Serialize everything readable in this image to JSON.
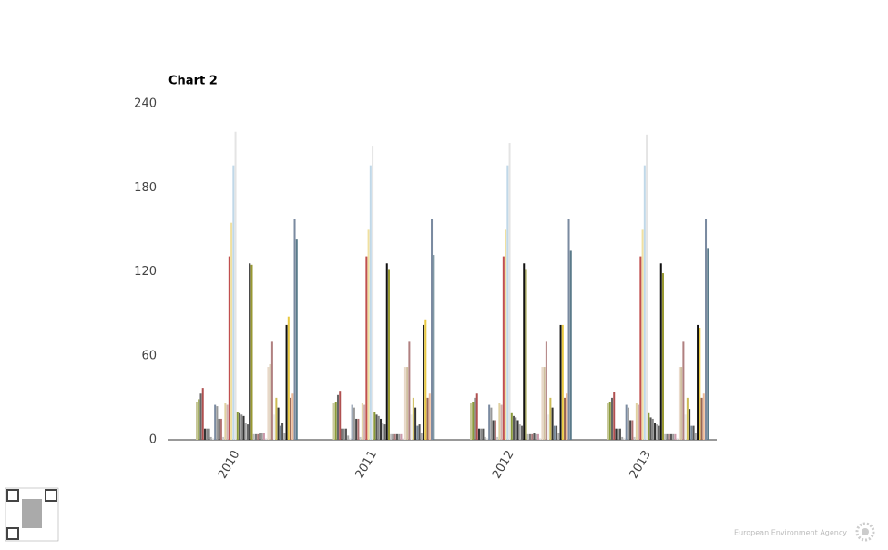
{
  "chart_data": {
    "type": "bar",
    "title": "Chart 2",
    "categories": [
      "2010",
      "2011",
      "2012",
      "2013"
    ],
    "ylim": [
      0,
      240
    ],
    "yticks": [
      0,
      60,
      120,
      180,
      240
    ],
    "grid": false,
    "series": [
      {
        "color": "#c8c89a",
        "values": [
          27,
          26,
          26,
          26
        ]
      },
      {
        "color": "#8a9a3a",
        "values": [
          29,
          27,
          27,
          27
        ]
      },
      {
        "color": "#666666",
        "values": [
          33,
          32,
          30,
          30
        ]
      },
      {
        "color": "#b05050",
        "values": [
          37,
          35,
          33,
          34
        ]
      },
      {
        "color": "#333333",
        "values": [
          8,
          8,
          8,
          8
        ]
      },
      {
        "color": "#888888",
        "values": [
          8,
          8,
          8,
          8
        ]
      },
      {
        "color": "#555555",
        "values": [
          8,
          8,
          8,
          8
        ]
      },
      {
        "color": "#aaaaaa",
        "values": [
          2,
          3,
          2,
          2
        ]
      },
      {
        "color": "#dddddd",
        "values": [
          1,
          1,
          1,
          1
        ]
      },
      {
        "color": "#7a8aa0",
        "values": [
          25,
          25,
          25,
          25
        ]
      },
      {
        "color": "#999999",
        "values": [
          24,
          23,
          23,
          23
        ]
      },
      {
        "color": "#444444",
        "values": [
          15,
          15,
          14,
          14
        ]
      },
      {
        "color": "#b07070",
        "values": [
          15,
          15,
          14,
          14
        ]
      },
      {
        "color": "#cccccc",
        "values": [
          2,
          2,
          2,
          2
        ]
      },
      {
        "color": "#e0d0a0",
        "values": [
          26,
          26,
          26,
          26
        ]
      },
      {
        "color": "#d0b0b0",
        "values": [
          25,
          25,
          25,
          25
        ]
      },
      {
        "color": "#c05050",
        "values": [
          131,
          131,
          131,
          131
        ]
      },
      {
        "color": "#f0e0a0",
        "values": [
          155,
          150,
          150,
          150
        ]
      },
      {
        "color": "#c0d8e8",
        "values": [
          196,
          196,
          196,
          196
        ]
      },
      {
        "color": "#e4e4e4",
        "values": [
          220,
          210,
          212,
          218
        ]
      },
      {
        "color": "#8a9a3a",
        "values": [
          20,
          20,
          19,
          19
        ]
      },
      {
        "color": "#555555",
        "values": [
          19,
          18,
          17,
          16
        ]
      },
      {
        "color": "#888888",
        "values": [
          18,
          17,
          16,
          15
        ]
      },
      {
        "color": "#333333",
        "values": [
          17,
          15,
          14,
          12
        ]
      },
      {
        "color": "#aaaaaa",
        "values": [
          12,
          12,
          11,
          11
        ]
      },
      {
        "color": "#666666",
        "values": [
          11,
          11,
          10,
          10
        ]
      },
      {
        "color": "#111111",
        "values": [
          126,
          126,
          126,
          126
        ]
      },
      {
        "color": "#999933",
        "values": [
          125,
          122,
          122,
          119
        ]
      },
      {
        "color": "#bbbbbb",
        "values": [
          4,
          4,
          4,
          4
        ]
      },
      {
        "color": "#777777",
        "values": [
          4,
          4,
          4,
          4
        ]
      },
      {
        "color": "#aa7777",
        "values": [
          4,
          4,
          4,
          4
        ]
      },
      {
        "color": "#555555",
        "values": [
          5,
          4,
          5,
          4
        ]
      },
      {
        "color": "#999999",
        "values": [
          5,
          4,
          4,
          4
        ]
      },
      {
        "color": "#cc99aa",
        "values": [
          5,
          4,
          4,
          4
        ]
      },
      {
        "color": "#dddddd",
        "values": [
          1,
          1,
          1,
          1
        ]
      },
      {
        "color": "#e8d8c8",
        "values": [
          52,
          52,
          52,
          52
        ]
      },
      {
        "color": "#d0c0a0",
        "values": [
          54,
          52,
          52,
          52
        ]
      },
      {
        "color": "#b08080",
        "values": [
          70,
          70,
          70,
          70
        ]
      },
      {
        "color": "#eeeeee",
        "values": [
          18,
          18,
          18,
          18
        ]
      },
      {
        "color": "#ccbb55",
        "values": [
          30,
          30,
          30,
          30
        ]
      },
      {
        "color": "#333333",
        "values": [
          23,
          23,
          23,
          22
        ]
      },
      {
        "color": "#778899",
        "values": [
          10,
          10,
          10,
          10
        ]
      },
      {
        "color": "#555555",
        "values": [
          12,
          11,
          10,
          10
        ]
      },
      {
        "color": "#aaaaaa",
        "values": [
          5,
          5,
          5,
          5
        ]
      },
      {
        "color": "#111111",
        "values": [
          82,
          82,
          82,
          82
        ]
      },
      {
        "color": "#e8c840",
        "values": [
          88,
          86,
          82,
          80
        ]
      },
      {
        "color": "#996655",
        "values": [
          30,
          30,
          30,
          30
        ]
      },
      {
        "color": "#eebb99",
        "values": [
          33,
          33,
          33,
          33
        ]
      },
      {
        "color": "#7a8aa0",
        "values": [
          158,
          158,
          158,
          158
        ]
      },
      {
        "color": "#5a7a8a",
        "values": [
          143,
          132,
          135,
          137
        ]
      }
    ]
  },
  "footer": "European Environment Agency"
}
